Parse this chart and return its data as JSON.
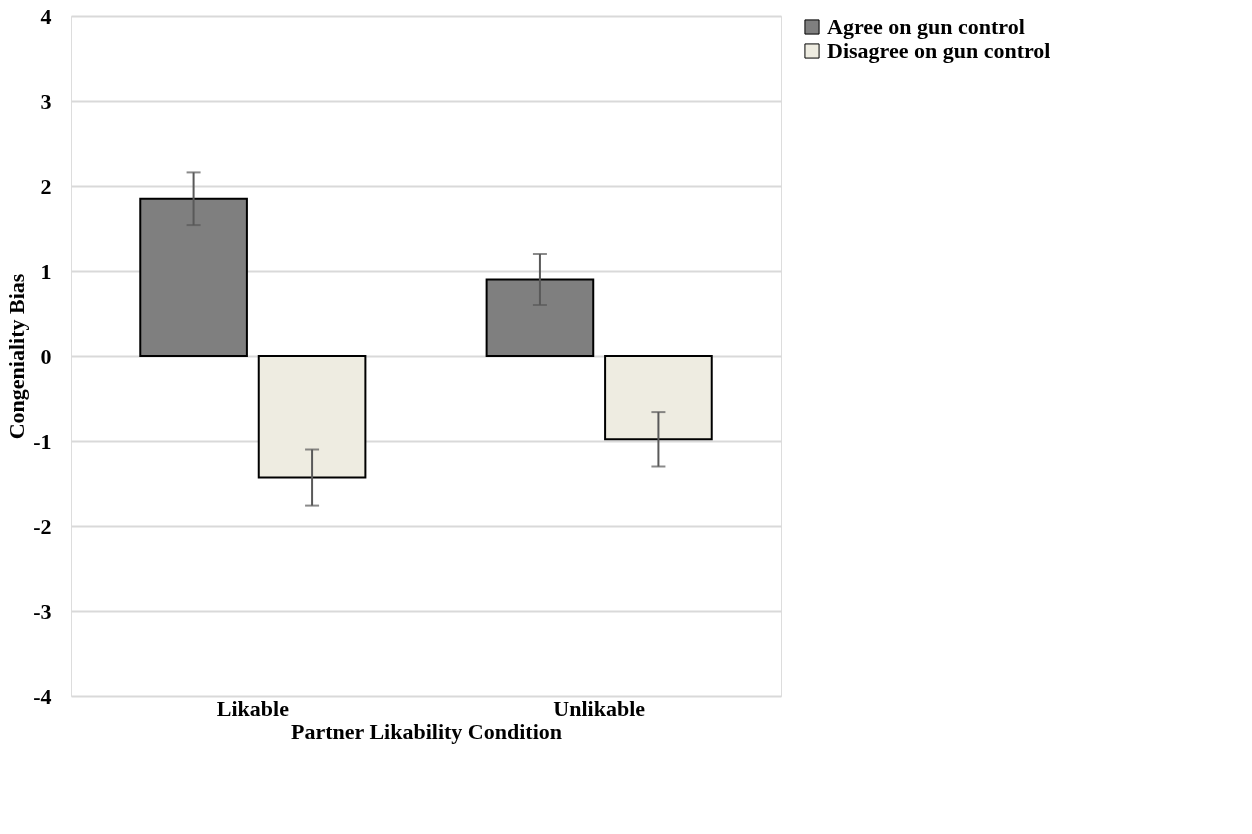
{
  "chart_data": {
    "type": "bar",
    "xlabel": "Partner Likability Condition",
    "ylabel": "Congeniality Bias",
    "categories": [
      "Likable",
      "Unlikable"
    ],
    "series": [
      {
        "name": "Agree on gun control",
        "color": "#7f7f7f",
        "values": [
          1.85,
          0.9
        ],
        "errors": [
          0.31,
          0.3
        ]
      },
      {
        "name": "Disagree on gun control",
        "color": "#eeece1",
        "values": [
          -1.43,
          -0.98
        ],
        "errors": [
          0.33,
          0.32
        ]
      }
    ],
    "ylim": [
      -4,
      4
    ],
    "yticks": [
      -4,
      -3,
      -2,
      -1,
      0,
      1,
      2,
      3,
      4
    ],
    "grid": "y",
    "legend": "right"
  }
}
